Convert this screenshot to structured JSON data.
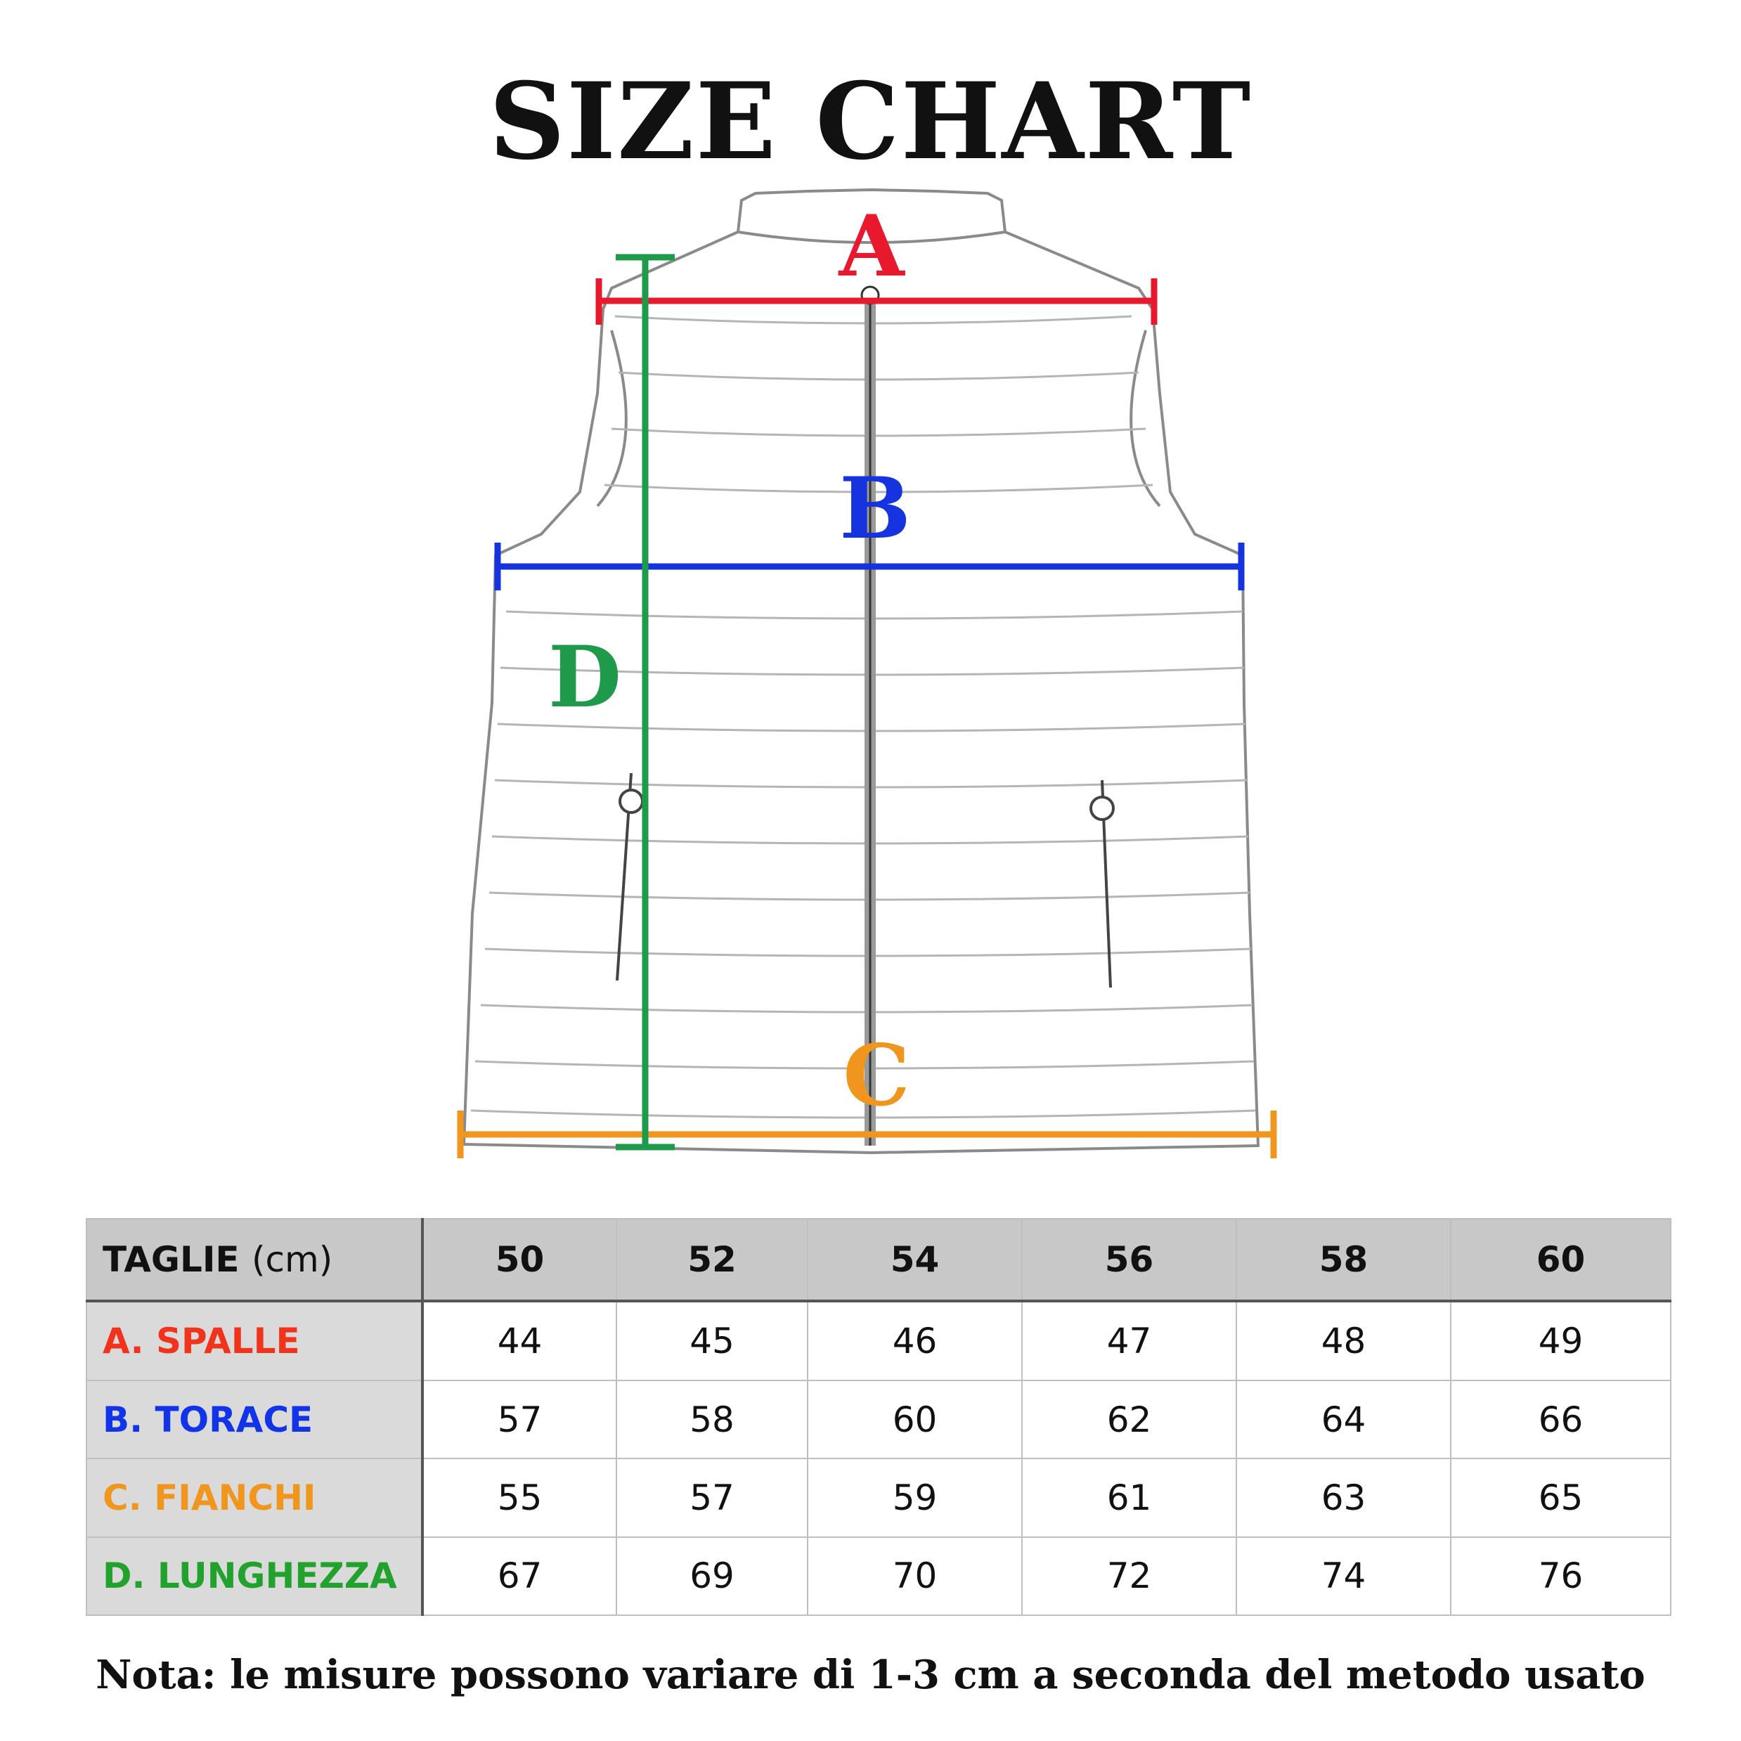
{
  "title": "SIZE CHART",
  "diagram": {
    "labels": {
      "a": "A",
      "b": "B",
      "c": "C",
      "d": "D"
    },
    "colors": {
      "a": "#e8192c",
      "b": "#1534e0",
      "c": "#f0961e",
      "d": "#1e9a4a"
    }
  },
  "table": {
    "header_label": "TAGLIE",
    "header_unit": "(cm)",
    "sizes": [
      "50",
      "52",
      "54",
      "56",
      "58",
      "60"
    ],
    "rows": [
      {
        "label": "A. SPALLE",
        "color": "#f2331b",
        "values": [
          "44",
          "45",
          "46",
          "47",
          "48",
          "49"
        ]
      },
      {
        "label": "B. TORACE",
        "color": "#1234e8",
        "values": [
          "57",
          "58",
          "60",
          "62",
          "64",
          "66"
        ]
      },
      {
        "label": "C. FIANCHI",
        "color": "#f0961e",
        "values": [
          "55",
          "57",
          "59",
          "61",
          "63",
          "65"
        ]
      },
      {
        "label": "D. LUNGHEZZA",
        "color": "#22a12c",
        "values": [
          "67",
          "69",
          "70",
          "72",
          "74",
          "76"
        ]
      }
    ]
  },
  "note": "Nota: le misure possono variare di 1-3 cm a seconda del metodo usato"
}
